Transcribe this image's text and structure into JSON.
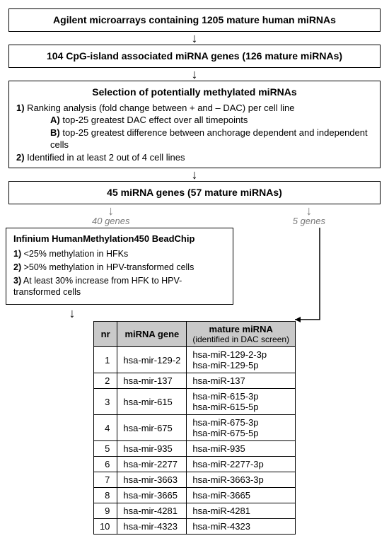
{
  "box1": "Agilent microarrays containing 1205 mature human miRNAs",
  "box2": "104 CpG-island associated miRNA genes (126 mature miRNAs)",
  "selection": {
    "title": "Selection of potentially methylated miRNAs",
    "line1_bold": "1)",
    "line1": " Ranking analysis (fold change between + and – DAC) per cell line",
    "lineA_bold": "A)",
    "lineA": " top-25 greatest DAC effect over all timepoints",
    "lineB_bold": "B)",
    "lineB": " top-25 greatest difference between anchorage dependent and independent cells",
    "line2_bold": "2)",
    "line2": " Identified in at least 2 out of 4 cell lines"
  },
  "box4": "45 miRNA genes (57 mature miRNAs)",
  "split": {
    "left": "40 genes",
    "right": "5 genes"
  },
  "infinium": {
    "title": "Infinium HumanMethylation450 BeadChip",
    "l1b": "1)",
    "l1": " <25% methylation in HFKs",
    "l2b": "2)",
    "l2": " >50% methylation in HPV-transformed cells",
    "l3b": "3)",
    "l3": " At least 30% increase from HFK to HPV-transformed cells"
  },
  "table": {
    "headers": {
      "nr": "nr",
      "gene": "miRNA gene",
      "mature": "mature miRNA",
      "sub": "(identified in DAC screen)"
    },
    "rows": [
      {
        "nr": "1",
        "gene": "hsa-mir-129-2",
        "mature": [
          "hsa-miR-129-2-3p",
          "hsa-miR-129-5p"
        ]
      },
      {
        "nr": "2",
        "gene": "hsa-mir-137",
        "mature": [
          "hsa-miR-137"
        ]
      },
      {
        "nr": "3",
        "gene": "hsa-mir-615",
        "mature": [
          "hsa-miR-615-3p",
          "hsa-miR-615-5p"
        ]
      },
      {
        "nr": "4",
        "gene": "hsa-mir-675",
        "mature": [
          "hsa-miR-675-3p",
          "hsa-miR-675-5p"
        ]
      },
      {
        "nr": "5",
        "gene": "hsa-mir-935",
        "mature": [
          "hsa-miR-935"
        ]
      },
      {
        "nr": "6",
        "gene": "hsa-mir-2277",
        "mature": [
          "hsa-miR-2277-3p"
        ]
      },
      {
        "nr": "7",
        "gene": "hsa-mir-3663",
        "mature": [
          "hsa-miR-3663-3p"
        ]
      },
      {
        "nr": "8",
        "gene": "hsa-mir-3665",
        "mature": [
          "hsa-miR-3665"
        ]
      },
      {
        "nr": "9",
        "gene": "hsa-mir-4281",
        "mature": [
          "hsa-miR-4281"
        ]
      },
      {
        "nr": "10",
        "gene": "hsa-mir-4323",
        "mature": [
          "hsa-miR-4323"
        ]
      }
    ]
  },
  "colors": {
    "header_bg": "#c9c9c9",
    "split_gray": "#7a7a7a"
  }
}
